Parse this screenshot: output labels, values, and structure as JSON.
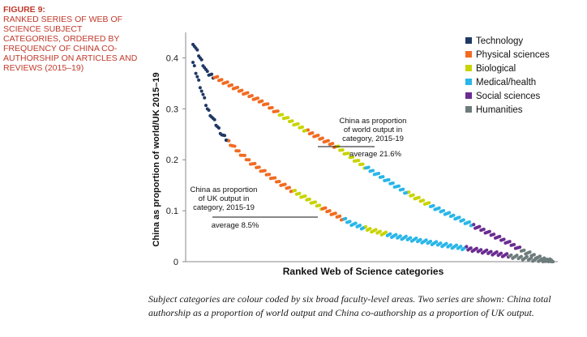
{
  "figure": {
    "number": "FIGURE 9:",
    "title": "RANKED SERIES OF WEB OF SCIENCE SUBJECT CATEGORIES, ORDERED BY FREQUENCY OF CHINA CO-AUTHORSHIP ON ARTICLES AND REVIEWS (2015–19)"
  },
  "caption": "Subject categories are colour coded by six broad faculty-level areas. Two series are shown: China total authorship as a proportion of world output and China co-authorship as a proportion of UK output.",
  "colors": {
    "Technology": "#1f3864",
    "Physical sciences": "#f26b21",
    "Biological": "#c8d400",
    "Medical/health": "#29b6e8",
    "Social sciences": "#6a2c91",
    "Humanities": "#6d7b7b"
  },
  "chart_data": {
    "type": "scatter",
    "xlabel": "Ranked Web of Science categories",
    "ylabel": "China as proportion of world/UK 2015–19",
    "ylim": [
      0,
      0.45
    ],
    "yticks": [
      "0",
      "0.1",
      "0.2",
      "0.3",
      "0.4"
    ],
    "n_categories": 250,
    "legend": [
      {
        "name": "Technology"
      },
      {
        "name": "Physical sciences"
      },
      {
        "name": "Biological"
      },
      {
        "name": "Medical/health"
      },
      {
        "name": "Social sciences"
      },
      {
        "name": "Humanities"
      }
    ],
    "series": [
      {
        "name": "China as proportion of world output in category, 2015-19",
        "average": 0.216,
        "average_label": "average 21.6%",
        "points": [
          [
            0,
            0.43
          ],
          [
            5,
            0.4
          ],
          [
            10,
            0.37
          ],
          [
            20,
            0.355
          ],
          [
            30,
            0.34
          ],
          [
            40,
            0.325
          ],
          [
            50,
            0.31
          ],
          [
            60,
            0.29
          ],
          [
            70,
            0.272
          ],
          [
            80,
            0.255
          ],
          [
            90,
            0.24
          ],
          [
            100,
            0.225
          ],
          [
            110,
            0.205
          ],
          [
            120,
            0.185
          ],
          [
            130,
            0.168
          ],
          [
            140,
            0.15
          ],
          [
            150,
            0.133
          ],
          [
            160,
            0.118
          ],
          [
            170,
            0.103
          ],
          [
            180,
            0.09
          ],
          [
            190,
            0.077
          ],
          [
            200,
            0.064
          ],
          [
            210,
            0.05
          ],
          [
            220,
            0.036
          ],
          [
            230,
            0.02
          ],
          [
            240,
            0.008
          ],
          [
            250,
            0.0
          ]
        ],
        "category_bands": [
          {
            "area": "Technology",
            "from": 0,
            "to": 15
          },
          {
            "area": "Physical sciences",
            "from": 15,
            "to": 60
          },
          {
            "area": "Biological",
            "from": 60,
            "to": 80
          },
          {
            "area": "Physical sciences",
            "from": 80,
            "to": 100
          },
          {
            "area": "Biological",
            "from": 100,
            "to": 120
          },
          {
            "area": "Medical/health",
            "from": 120,
            "to": 150
          },
          {
            "area": "Biological",
            "from": 150,
            "to": 165
          },
          {
            "area": "Medical/health",
            "from": 165,
            "to": 195
          },
          {
            "area": "Social sciences",
            "from": 195,
            "to": 228
          },
          {
            "area": "Humanities",
            "from": 228,
            "to": 251
          }
        ]
      },
      {
        "name": "China as proportion of UK output in category, 2015-19",
        "average": 0.085,
        "average_label": "average 8.5%",
        "points": [
          [
            0,
            0.39
          ],
          [
            10,
            0.3
          ],
          [
            20,
            0.25
          ],
          [
            30,
            0.22
          ],
          [
            40,
            0.195
          ],
          [
            50,
            0.175
          ],
          [
            60,
            0.155
          ],
          [
            70,
            0.138
          ],
          [
            80,
            0.122
          ],
          [
            90,
            0.105
          ],
          [
            100,
            0.09
          ],
          [
            110,
            0.075
          ],
          [
            120,
            0.065
          ],
          [
            130,
            0.057
          ],
          [
            140,
            0.05
          ],
          [
            150,
            0.045
          ],
          [
            160,
            0.04
          ],
          [
            170,
            0.035
          ],
          [
            180,
            0.03
          ],
          [
            190,
            0.026
          ],
          [
            200,
            0.021
          ],
          [
            210,
            0.016
          ],
          [
            220,
            0.011
          ],
          [
            230,
            0.007
          ],
          [
            240,
            0.003
          ],
          [
            250,
            0.0
          ]
        ],
        "category_bands": [
          {
            "area": "Technology",
            "from": 0,
            "to": 25
          },
          {
            "area": "Physical sciences",
            "from": 25,
            "to": 70
          },
          {
            "area": "Biological",
            "from": 70,
            "to": 90
          },
          {
            "area": "Physical sciences",
            "from": 90,
            "to": 105
          },
          {
            "area": "Medical/health",
            "from": 105,
            "to": 120
          },
          {
            "area": "Biological",
            "from": 120,
            "to": 135
          },
          {
            "area": "Medical/health",
            "from": 135,
            "to": 190
          },
          {
            "area": "Social sciences",
            "from": 190,
            "to": 220
          },
          {
            "area": "Humanities",
            "from": 220,
            "to": 251
          }
        ]
      }
    ],
    "annotations": [
      {
        "lines": [
          "China as proportion",
          "of world output in",
          "category, 2015-19"
        ]
      },
      {
        "lines": [
          "China as proportion",
          "of UK output in",
          "category, 2015-19"
        ]
      }
    ]
  }
}
